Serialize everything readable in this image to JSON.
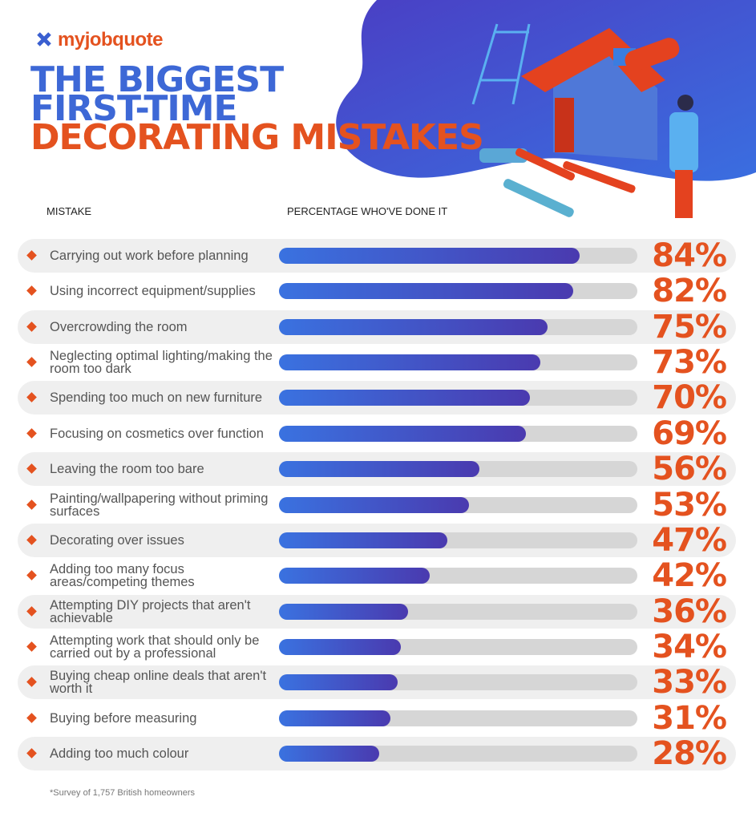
{
  "chart_data": {
    "type": "bar",
    "orientation": "horizontal",
    "logo": "myjobquote",
    "title_lines": [
      "THE BIGGEST",
      "FIRST-TIME",
      "DECORATING MISTAKES"
    ],
    "category_header": "MISTAKE",
    "value_header": "PERCENTAGE WHO'VE DONE IT",
    "categories": [
      "Carrying out work before planning",
      "Using incorrect equipment/supplies",
      "Overcrowding the room",
      "Neglecting optimal lighting/making the room too dark",
      "Spending too much on new furniture",
      "Focusing on cosmetics over function",
      "Leaving the room too bare",
      "Painting/wallpapering without priming surfaces",
      "Decorating over issues",
      "Adding too many focus areas/competing themes",
      "Attempting DIY projects that aren't achievable",
      "Attempting work that should only be carried out by a professional",
      "Buying cheap online deals that aren't worth it",
      "Buying before measuring",
      "Adding too much colour"
    ],
    "values": [
      84,
      82,
      75,
      73,
      70,
      69,
      56,
      53,
      47,
      42,
      36,
      34,
      33,
      31,
      28
    ],
    "value_labels": [
      "84%",
      "82%",
      "75%",
      "73%",
      "70%",
      "69%",
      "56%",
      "53%",
      "47%",
      "42%",
      "36%",
      "34%",
      "33%",
      "31%",
      "28%"
    ],
    "xlim": [
      0,
      100
    ],
    "color": "#3a72e0",
    "footnote": "*Survey of 1,757 British homeowners"
  }
}
